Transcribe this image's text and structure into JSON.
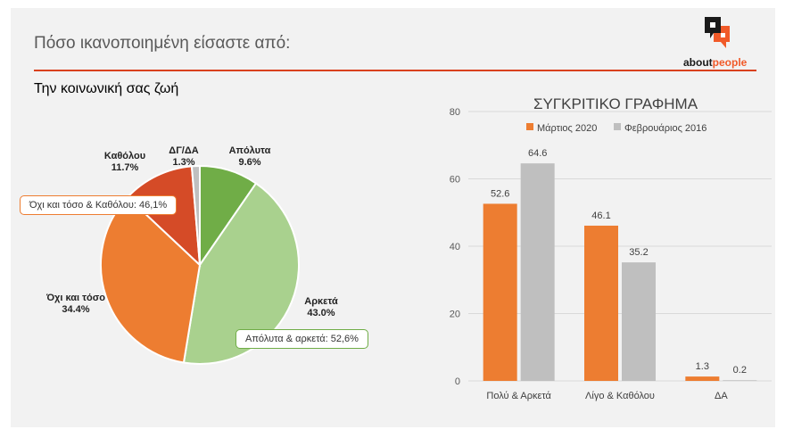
{
  "header": {
    "title": "Πόσο ικανοποιημένη είσαστε από:",
    "subtitle": "Την κοινωνική σας ζωή",
    "logo": {
      "part1": "about",
      "part2": "people"
    }
  },
  "colors": {
    "accent": "#d9411e",
    "orange": "#ed7d31",
    "gray": "#bfbfbf"
  },
  "chart_data": [
    {
      "type": "pie",
      "slices": [
        {
          "label": "Απόλυτα",
          "value": 9.6,
          "display": "9.6%",
          "color": "#70ad47"
        },
        {
          "label": "Αρκετά",
          "value": 43.0,
          "display": "43.0%",
          "color": "#a9d18e"
        },
        {
          "label": "Όχι και τόσο",
          "value": 34.4,
          "display": "34.4%",
          "color": "#ed7d31"
        },
        {
          "label": "Καθόλου",
          "value": 11.7,
          "display": "11.7%",
          "color": "#d54b27"
        },
        {
          "label": "ΔΓ/ΔΑ",
          "value": 1.3,
          "display": "1.3%",
          "color": "#bfbfbf"
        }
      ],
      "annotations": [
        "Όχι και τόσο & Καθόλου: 46,1%",
        "Απόλυτα & αρκετά: 52,6%"
      ]
    },
    {
      "type": "bar",
      "title": "ΣΥΓΚΡΙΤΙΚΟ ΓΡΑΦΗΜΑ",
      "categories": [
        "Πολύ & Αρκετά",
        "Λίγο & Καθόλου",
        "ΔΑ"
      ],
      "series": [
        {
          "name": "Μάρτιος 2020",
          "values": [
            52.6,
            46.1,
            1.3
          ],
          "color": "#ed7d31"
        },
        {
          "name": "Φεβρουάριος 2016",
          "values": [
            64.6,
            35.2,
            0.2
          ],
          "color": "#bfbfbf"
        }
      ],
      "ylim": [
        0,
        80
      ],
      "yticks": [
        "0",
        "20",
        "40",
        "60",
        "80"
      ],
      "legend": "top",
      "grid": true
    }
  ]
}
